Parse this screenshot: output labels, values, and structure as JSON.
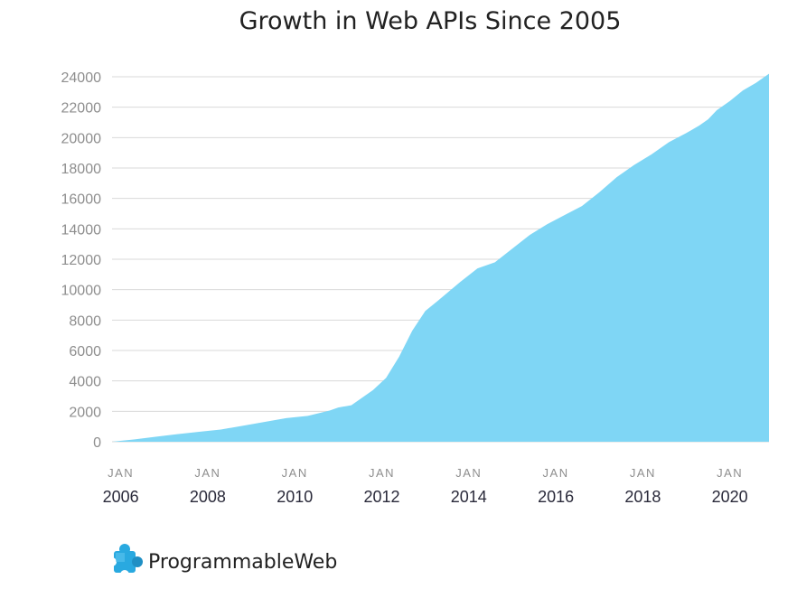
{
  "chart_data": {
    "type": "area",
    "title": "Growth in Web APIs Since 2005",
    "xlabel": "",
    "ylabel": "",
    "ylim": [
      0,
      24000
    ],
    "xlim": [
      2006.0,
      2021.1
    ],
    "grid": true,
    "y_ticks": [
      0,
      2000,
      4000,
      6000,
      8000,
      10000,
      12000,
      14000,
      16000,
      18000,
      20000,
      22000,
      24000
    ],
    "x_ticks": [
      {
        "month": "JAN",
        "year": "2006",
        "value": 2006.2
      },
      {
        "month": "JAN",
        "year": "2008",
        "value": 2008.2
      },
      {
        "month": "JAN",
        "year": "2010",
        "value": 2010.2
      },
      {
        "month": "JAN",
        "year": "2012",
        "value": 2012.2
      },
      {
        "month": "JAN",
        "year": "2014",
        "value": 2014.2
      },
      {
        "month": "JAN",
        "year": "2016",
        "value": 2016.2
      },
      {
        "month": "JAN",
        "year": "2018",
        "value": 2018.2
      },
      {
        "month": "JAN",
        "year": "2020",
        "value": 2020.2
      }
    ],
    "series": [
      {
        "color": "#7fd6f5",
        "x": [
          2006.0,
          2006.5,
          2007.0,
          2007.5,
          2008.0,
          2008.5,
          2009.0,
          2009.5,
          2010.0,
          2010.5,
          2011.0,
          2011.2,
          2011.5,
          2011.8,
          2012.0,
          2012.3,
          2012.6,
          2012.9,
          2013.2,
          2013.5,
          2014.0,
          2014.4,
          2014.8,
          2015.2,
          2015.6,
          2016.0,
          2016.4,
          2016.8,
          2017.2,
          2017.6,
          2018.0,
          2018.4,
          2018.8,
          2019.2,
          2019.5,
          2019.7,
          2019.9,
          2020.2,
          2020.5,
          2020.8,
          2021.1
        ],
        "y": [
          0,
          150,
          330,
          500,
          650,
          800,
          1050,
          1300,
          1550,
          1700,
          2050,
          2250,
          2400,
          3000,
          3400,
          4200,
          5600,
          7300,
          8600,
          9300,
          10500,
          11400,
          11800,
          12700,
          13600,
          14300,
          14900,
          15500,
          16400,
          17400,
          18200,
          18900,
          19700,
          20300,
          20800,
          21200,
          21800,
          22400,
          23100,
          23600,
          24200
        ]
      }
    ]
  },
  "brand": {
    "name": "ProgrammableWeb",
    "logo_icon": "puzzle-piece-icon",
    "logo_color": "#29a9e0"
  }
}
